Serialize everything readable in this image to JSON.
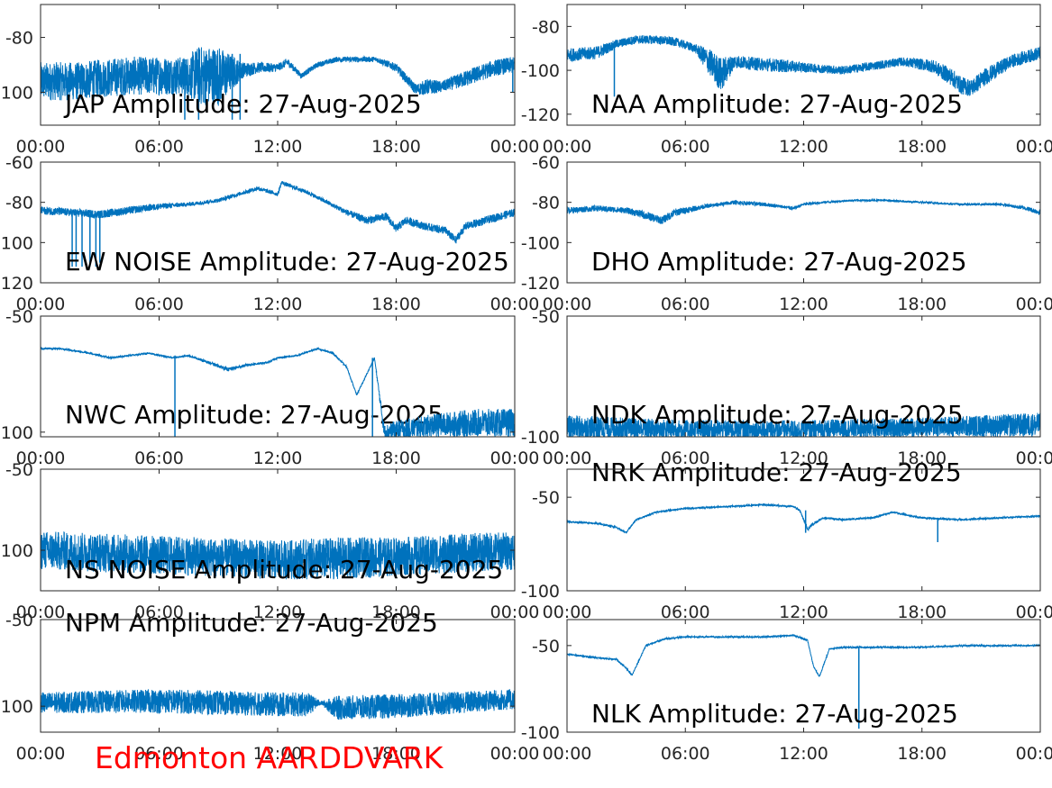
{
  "figure": {
    "footer": "Edmonton AARDDVARK",
    "footer_color": "#ff0000",
    "line_color": "#0072bd",
    "x_tick_labels": [
      "00:00",
      "06:00",
      "12:00",
      "18:00",
      "00:00"
    ]
  },
  "chart_data": [
    {
      "type": "line",
      "title": "JAP Amplitude: 27-Aug-2025",
      "xlabel": "",
      "ylabel": "",
      "x_range_hours": [
        0,
        24
      ],
      "ylim": [
        -112,
        -68
      ],
      "yticks": [
        -80,
        -100
      ],
      "ytick_labels": [
        "-80",
        "-100"
      ],
      "grid": false,
      "series": [
        {
          "x": [
            0,
            2,
            3,
            4.5,
            6,
            7.4,
            8,
            9,
            10.2,
            11,
            12,
            12.5,
            13.2,
            14,
            15,
            16,
            17,
            18,
            19,
            19.6,
            20.3,
            21.5,
            23,
            24
          ],
          "y": [
            -96,
            -96,
            -95,
            -94,
            -94,
            -94,
            -94,
            -94,
            -92,
            -91,
            -91,
            -89,
            -94,
            -90,
            -88,
            -88,
            -88,
            -91,
            -99,
            -98,
            -98,
            -95,
            -91,
            -90
          ],
          "noise": [
            7,
            7,
            7,
            7,
            7,
            7,
            11,
            11,
            3,
            2,
            1.5,
            1.5,
            1,
            1,
            1,
            1,
            1,
            1.5,
            2,
            3,
            2,
            3,
            3,
            3
          ]
        }
      ],
      "spikes": [
        {
          "x": 7.3,
          "y1": -88,
          "y2": -110
        },
        {
          "x": 8.0,
          "y1": -88,
          "y2": -110
        },
        {
          "x": 9.7,
          "y1": -86,
          "y2": -110
        },
        {
          "x": 10.1,
          "y1": -86,
          "y2": -110
        },
        {
          "x": 23.9,
          "y1": -88,
          "y2": -100
        }
      ]
    },
    {
      "type": "line",
      "title": "DHO Amplitude: 27-Aug-2025",
      "xlabel": "",
      "ylabel": "",
      "x_range_hours": [
        0,
        24
      ],
      "ylim": [
        -125,
        -70
      ],
      "yticks": [
        -80,
        -100,
        -120
      ],
      "ytick_labels": [
        "-80",
        "-100",
        "-120"
      ],
      "grid": false,
      "series": [
        {
          "x": [
            0,
            1.5,
            2.5,
            3.5,
            4.5,
            5.5,
            6.5,
            7.2,
            7.8,
            8.5,
            9.5,
            11,
            12.5,
            14,
            15.5,
            17,
            18.5,
            19.5,
            20,
            20.5,
            21.2,
            22.5,
            24
          ],
          "y": [
            -93,
            -92,
            -88,
            -86,
            -86,
            -87,
            -90,
            -96,
            -102,
            -96,
            -97,
            -98,
            -99,
            -100,
            -98,
            -96,
            -98,
            -103,
            -107,
            -108,
            -103,
            -96,
            -92
          ],
          "noise": [
            3,
            3,
            2,
            2,
            2,
            2,
            2,
            6,
            8,
            3,
            3,
            3,
            2,
            2,
            2,
            2,
            3,
            4,
            4,
            4,
            4,
            3,
            3
          ]
        }
      ],
      "spikes": [
        {
          "x": 2.4,
          "y1": -88,
          "y2": -112
        }
      ]
    },
    {
      "type": "line",
      "title": "NWC Amplitude: 27-Aug-2025",
      "xlabel": "",
      "ylabel": "",
      "x_range_hours": [
        0,
        24
      ],
      "ylim": [
        -120,
        -60
      ],
      "yticks": [
        -60,
        -80,
        -100,
        -120
      ],
      "ytick_labels": [
        "-60",
        "-80",
        "-100",
        "-120"
      ],
      "grid": false,
      "series": [
        {
          "x": [
            0,
            1.5,
            3,
            4.5,
            6,
            7.5,
            9,
            10,
            11,
            12,
            12.2,
            12.4,
            13.5,
            14.5,
            15.5,
            16.5,
            17.5,
            18,
            18.5,
            19.5,
            20.5,
            21,
            21.5,
            22.5,
            24
          ],
          "y": [
            -84,
            -85,
            -86,
            -84,
            -82,
            -81,
            -79,
            -76,
            -73,
            -76,
            -70,
            -71,
            -75,
            -80,
            -85,
            -89,
            -87,
            -93,
            -89,
            -92,
            -94,
            -99,
            -92,
            -89,
            -85
          ],
          "noise": [
            2,
            2,
            2,
            2,
            1.5,
            1,
            1,
            1,
            1,
            1,
            1,
            1,
            1,
            1,
            1.5,
            2,
            2,
            2,
            2,
            2,
            2,
            2,
            2,
            2,
            2
          ]
        }
      ],
      "spikes": [
        {
          "x": 1.6,
          "y1": -85,
          "y2": -112
        },
        {
          "x": 1.8,
          "y1": -85,
          "y2": -112
        },
        {
          "x": 2.1,
          "y1": -86,
          "y2": -112
        },
        {
          "x": 2.5,
          "y1": -86,
          "y2": -112
        },
        {
          "x": 2.8,
          "y1": -86,
          "y2": -112
        },
        {
          "x": 3.0,
          "y1": -86,
          "y2": -110
        }
      ]
    },
    {
      "type": "line",
      "title": "NRK Amplitude: 27-Aug-2025",
      "xlabel": "",
      "ylabel": "",
      "x_range_hours": [
        0,
        24
      ],
      "ylim": [
        -120,
        -60
      ],
      "yticks": [
        -60,
        -80,
        -100,
        -120
      ],
      "ytick_labels": [
        "-60",
        "-80",
        "-100",
        "-120"
      ],
      "grid": false,
      "series": [
        {
          "x": [
            0,
            1.5,
            3,
            3.8,
            4.8,
            5.5,
            7,
            8.5,
            10,
            10.8,
            11.5,
            12,
            13,
            14.5,
            16,
            18,
            20,
            22,
            23.3,
            24
          ],
          "y": [
            -84,
            -83,
            -84,
            -86,
            -89,
            -85,
            -82,
            -80,
            -81,
            -82,
            -83,
            -81,
            -80,
            -79,
            -79,
            -80,
            -81,
            -81,
            -83,
            -85
          ],
          "noise": [
            1.5,
            1.5,
            1.5,
            2,
            2,
            2,
            1,
            1,
            1,
            0.8,
            0.8,
            0.8,
            0.6,
            0.5,
            0.5,
            0.5,
            0.5,
            0.6,
            1,
            1.5
          ]
        }
      ],
      "spikes": []
    },
    {
      "type": "line",
      "title": "NPM Amplitude: 27-Aug-2025",
      "xlabel": "",
      "ylabel": "",
      "x_range_hours": [
        0,
        24
      ],
      "ylim": [
        -102,
        -50
      ],
      "yticks": [
        -50,
        -100
      ],
      "ytick_labels": [
        "-50",
        "-100"
      ],
      "grid": false,
      "series": [
        {
          "x": [
            0,
            1,
            2.5,
            3.5,
            4.5,
            5.5,
            6.7,
            7.5,
            8.5,
            9.5,
            10.5,
            11.5,
            12,
            13,
            14,
            14.8,
            15.5,
            16,
            16.4,
            16.9,
            17.4,
            18,
            20,
            22,
            24
          ],
          "y": [
            -64,
            -64,
            -66,
            -68,
            -67,
            -66,
            -68,
            -67,
            -70,
            -73,
            -71,
            -70,
            -68,
            -67,
            -64,
            -66,
            -72,
            -84,
            -77,
            -68,
            -100,
            -99,
            -97,
            -96,
            -96
          ],
          "noise": [
            0.4,
            0.4,
            0.4,
            0.4,
            0.4,
            0.4,
            0.4,
            0.4,
            0.6,
            0.8,
            0.6,
            0.4,
            0.4,
            0.4,
            0.4,
            0.4,
            0.4,
            0.4,
            0.4,
            0.4,
            3,
            4,
            5,
            6,
            6
          ]
        }
      ],
      "spikes": [
        {
          "x": 6.8,
          "y1": -67,
          "y2": -102
        },
        {
          "x": 16.8,
          "y1": -68,
          "y2": -102
        }
      ]
    },
    {
      "type": "line",
      "title": "NAA Amplitude: 27-Aug-2025",
      "xlabel": "",
      "ylabel": "",
      "x_range_hours": [
        0,
        24
      ],
      "ylim": [
        -100,
        -50
      ],
      "yticks": [
        -50,
        -100
      ],
      "ytick_labels": [
        "-50",
        "-100"
      ],
      "grid": false,
      "series": [
        {
          "x": [
            0,
            6,
            12,
            18,
            24
          ],
          "y": [
            -96,
            -97,
            -97,
            -96,
            -95
          ],
          "noise": [
            5,
            4,
            4,
            4,
            5
          ]
        }
      ],
      "spikes": []
    },
    {
      "type": "line",
      "title": "EW NOISE Amplitude: 27-Aug-2025",
      "xlabel": "",
      "ylabel": "",
      "x_range_hours": [
        0,
        24
      ],
      "ylim": [
        -125,
        -50
      ],
      "yticks": [
        -50,
        -100
      ],
      "ytick_labels": [
        "-50",
        "-100"
      ],
      "grid": false,
      "series": [
        {
          "x": [
            0,
            6,
            12,
            15,
            18,
            24
          ],
          "y": [
            -100,
            -103,
            -106,
            -105,
            -104,
            -100
          ],
          "noise": [
            12,
            12,
            12,
            13,
            12,
            12
          ]
        }
      ],
      "spikes": []
    },
    {
      "type": "line",
      "title": "NDK Amplitude: 27-Aug-2025",
      "xlabel": "",
      "ylabel": "",
      "x_range_hours": [
        0,
        24
      ],
      "ylim": [
        -100,
        -35
      ],
      "yticks": [
        -50,
        -100
      ],
      "ytick_labels": [
        "-50",
        "-100"
      ],
      "grid": false,
      "series": [
        {
          "x": [
            0,
            1.5,
            2.5,
            3,
            3.5,
            4.5,
            6,
            8,
            10,
            11.5,
            11.8,
            12.2,
            12.5,
            13,
            14,
            15.5,
            16.5,
            18,
            20,
            22,
            24
          ],
          "y": [
            -63,
            -64,
            -66,
            -69,
            -62,
            -58,
            -56,
            -55,
            -54,
            -55,
            -57,
            -67,
            -64,
            -61,
            -62,
            -61,
            -58,
            -61,
            -62,
            -61,
            -60
          ],
          "noise": [
            0.5,
            0.5,
            0.5,
            0.5,
            0.5,
            0.5,
            0.5,
            0.5,
            0.5,
            0.5,
            0.5,
            1,
            1,
            0.5,
            0.5,
            0.5,
            0.5,
            0.5,
            0.5,
            0.5,
            0.5
          ]
        }
      ],
      "spikes": [
        {
          "x": 12.1,
          "y1": -57,
          "y2": -69
        },
        {
          "x": 18.8,
          "y1": -61,
          "y2": -74
        }
      ]
    },
    {
      "type": "line",
      "title": "NS NOISE Amplitude: 27-Aug-2025",
      "xlabel": "",
      "ylabel": "",
      "x_range_hours": [
        0,
        24
      ],
      "ylim": [
        -115,
        -50
      ],
      "yticks": [
        -50,
        -100
      ],
      "ytick_labels": [
        "-50",
        "-100"
      ],
      "grid": false,
      "series": [
        {
          "x": [
            0,
            6,
            12,
            13.5,
            14.2,
            15,
            18,
            24
          ],
          "y": [
            -98,
            -97,
            -99,
            -99,
            -98,
            -101,
            -100,
            -96
          ],
          "noise": [
            6,
            7,
            7,
            7,
            1,
            7,
            7,
            6
          ]
        }
      ],
      "spikes": []
    },
    {
      "type": "line",
      "title": "NLK Amplitude: 27-Aug-2025",
      "xlabel": "",
      "ylabel": "",
      "x_range_hours": [
        0,
        24
      ],
      "ylim": [
        -100,
        -35
      ],
      "yticks": [
        -50,
        -100
      ],
      "ytick_labels": [
        "-50",
        "-100"
      ],
      "grid": false,
      "series": [
        {
          "x": [
            0,
            1.5,
            2.5,
            3,
            3.3,
            4,
            5,
            6,
            8,
            10,
            11.5,
            12.2,
            12.5,
            12.8,
            13.3,
            14,
            16,
            18,
            20,
            22,
            23.5,
            24
          ],
          "y": [
            -55,
            -57,
            -58,
            -63,
            -67,
            -50,
            -46,
            -45,
            -45,
            -45,
            -44,
            -47,
            -62,
            -68,
            -52,
            -51,
            -51,
            -51,
            -50,
            -50,
            -50,
            -50
          ],
          "noise": [
            0.5,
            0.5,
            0.5,
            0.5,
            0.5,
            0.5,
            0.5,
            0.5,
            0.5,
            0.5,
            0.5,
            0.5,
            0.5,
            0.5,
            0.5,
            0.5,
            0.5,
            0.5,
            0.5,
            0.5,
            0.5,
            0.5
          ]
        }
      ],
      "spikes": [
        {
          "x": 14.8,
          "y1": -51,
          "y2": -98
        }
      ]
    }
  ]
}
